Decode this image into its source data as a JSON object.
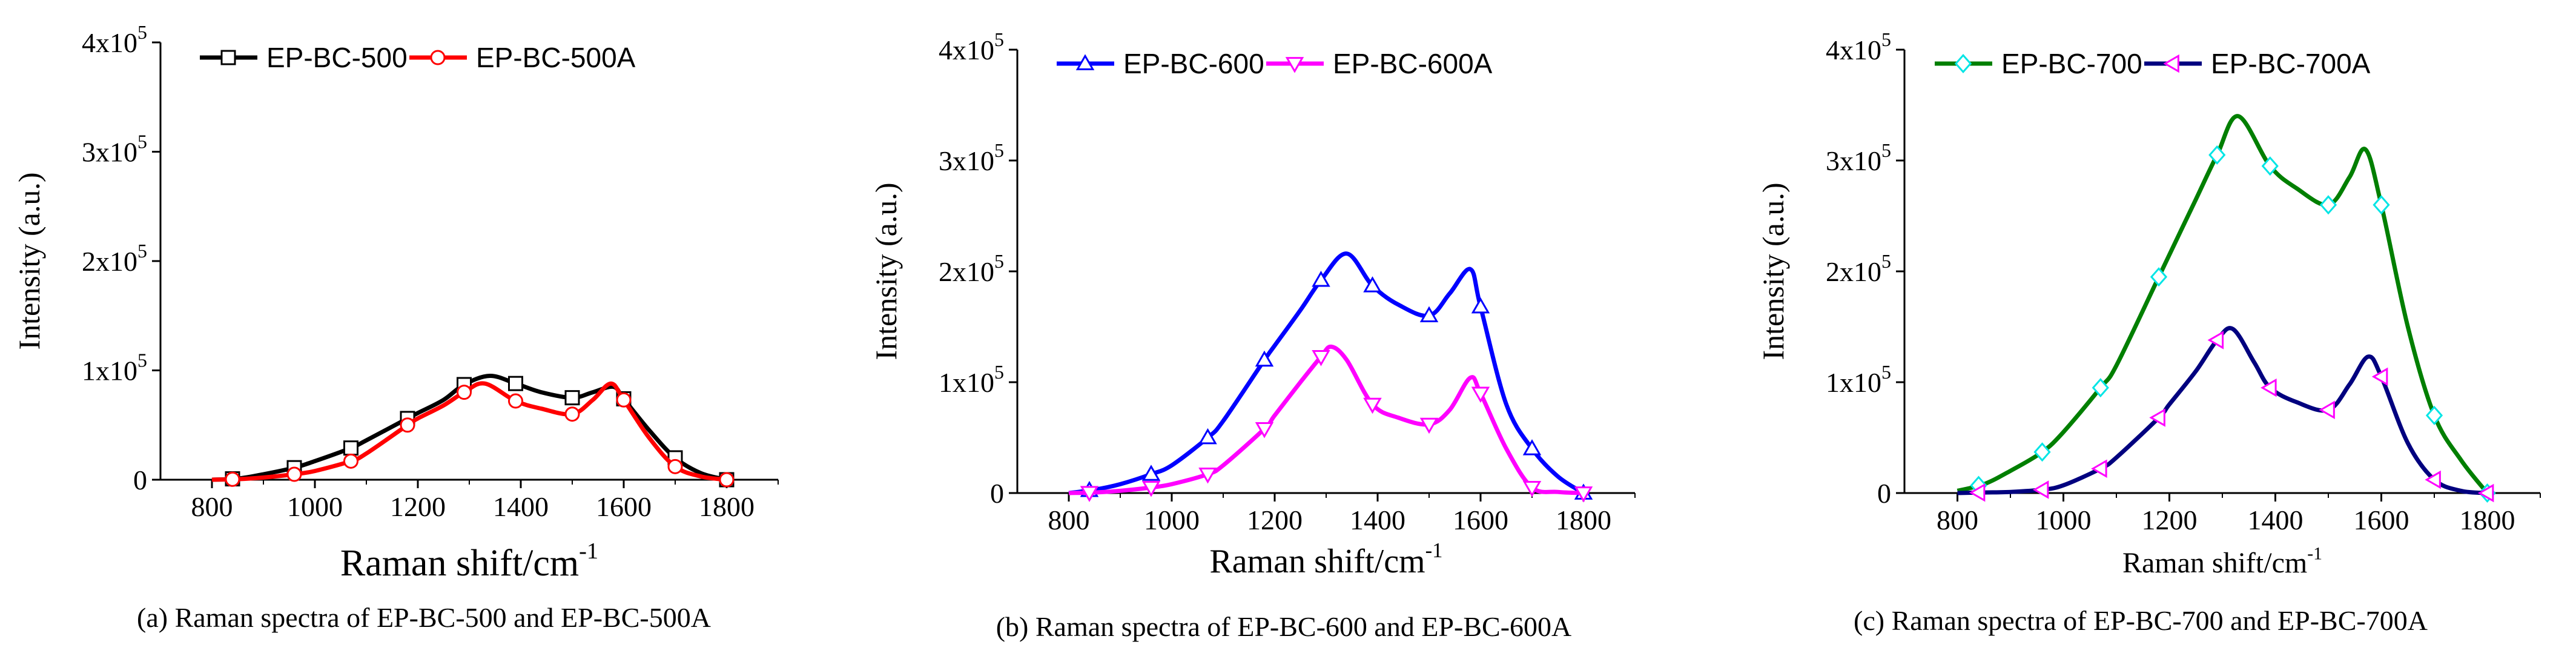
{
  "chart_data": [
    {
      "type": "line",
      "caption": "(a) Raman spectra of EP-BC-500 and EP-BC-500A",
      "xlabel": "Raman shift/cm",
      "xlabel_sup": "-1",
      "ylabel": "Intensity (a.u.)",
      "xlim": [
        700,
        1900
      ],
      "ylim": [
        0,
        400000
      ],
      "xticks": [
        "800",
        "1000",
        "1200",
        "1400",
        "1600",
        "1800"
      ],
      "yticks": [
        {
          "mant": "0",
          "exp": ""
        },
        {
          "mant": "1x10",
          "exp": "5"
        },
        {
          "mant": "2x10",
          "exp": "5"
        },
        {
          "mant": "3x10",
          "exp": "5"
        },
        {
          "mant": "4x10",
          "exp": "5"
        }
      ],
      "legend_position": "top-left",
      "series": [
        {
          "name": "EP-BC-500",
          "color": "#000000",
          "marker": "square",
          "marker_fill": "#ffffff",
          "x": [
            800,
            850,
            900,
            960,
            1000,
            1070,
            1100,
            1180,
            1200,
            1250,
            1290,
            1340,
            1390,
            1440,
            1500,
            1540,
            1580,
            1600,
            1650,
            1700,
            1750,
            1800
          ],
          "y": [
            0,
            1000,
            5000,
            11000,
            17000,
            29000,
            36000,
            56000,
            61000,
            73000,
            87000,
            95000,
            88000,
            80000,
            75000,
            80000,
            85000,
            74000,
            45000,
            20000,
            6000,
            0
          ],
          "markers_x": [
            840,
            960,
            1070,
            1180,
            1290,
            1390,
            1500,
            1600,
            1700,
            1800
          ]
        },
        {
          "name": "EP-BC-500A",
          "color": "#ff0000",
          "marker": "circle",
          "marker_fill": "#ffffff",
          "x": [
            800,
            850,
            900,
            960,
            1000,
            1070,
            1100,
            1180,
            1200,
            1250,
            1290,
            1330,
            1390,
            1440,
            1500,
            1540,
            1575,
            1600,
            1650,
            1700,
            1750,
            1800
          ],
          "y": [
            0,
            500,
            2000,
            5000,
            8000,
            17000,
            24000,
            50000,
            56000,
            68000,
            80000,
            88000,
            72000,
            65000,
            60000,
            73000,
            88000,
            73000,
            38000,
            12000,
            3000,
            0
          ],
          "markers_x": [
            840,
            960,
            1070,
            1180,
            1290,
            1390,
            1500,
            1600,
            1700,
            1800
          ]
        }
      ]
    },
    {
      "type": "line",
      "caption": "(b) Raman spectra of EP-BC-600 and EP-BC-600A",
      "xlabel": "Raman shift/cm",
      "xlabel_sup": "-1",
      "ylabel": "Intensity (a.u.)",
      "xlim": [
        700,
        1900
      ],
      "ylim": [
        0,
        400000
      ],
      "xticks": [
        "800",
        "1000",
        "1200",
        "1400",
        "1600",
        "1800"
      ],
      "yticks": [
        {
          "mant": "0",
          "exp": ""
        },
        {
          "mant": "1x10",
          "exp": "5"
        },
        {
          "mant": "2x10",
          "exp": "5"
        },
        {
          "mant": "3x10",
          "exp": "5"
        },
        {
          "mant": "4x10",
          "exp": "5"
        }
      ],
      "legend_position": "top-left",
      "series": [
        {
          "name": "EP-BC-600",
          "color": "#0000ff",
          "marker": "triangle-up",
          "marker_fill": "#ffffff",
          "x": [
            800,
            850,
            900,
            960,
            1000,
            1070,
            1100,
            1180,
            1200,
            1250,
            1290,
            1340,
            1390,
            1440,
            1500,
            1540,
            1580,
            1600,
            1650,
            1700,
            1750,
            1800
          ],
          "y": [
            0,
            3000,
            8000,
            17000,
            25000,
            50000,
            65000,
            120000,
            133000,
            165000,
            192000,
            216000,
            187000,
            170000,
            160000,
            180000,
            202000,
            168000,
            80000,
            40000,
            15000,
            0
          ],
          "markers_x": [
            840,
            960,
            1070,
            1180,
            1290,
            1390,
            1500,
            1600,
            1700,
            1800
          ]
        },
        {
          "name": "EP-BC-600A",
          "color": "#ff00ff",
          "marker": "triangle-down",
          "marker_fill": "#ffffff",
          "x": [
            800,
            850,
            900,
            960,
            1000,
            1070,
            1100,
            1180,
            1200,
            1250,
            1290,
            1310,
            1340,
            1390,
            1440,
            1500,
            1540,
            1580,
            1600,
            1650,
            1700,
            1750,
            1800
          ],
          "y": [
            0,
            500,
            2000,
            5000,
            8000,
            17000,
            25000,
            58000,
            70000,
            100000,
            123000,
            132000,
            120000,
            80000,
            68000,
            62000,
            75000,
            104000,
            90000,
            40000,
            5000,
            1000,
            0
          ],
          "markers_x": [
            840,
            960,
            1070,
            1180,
            1290,
            1390,
            1500,
            1600,
            1700,
            1800
          ]
        }
      ]
    },
    {
      "type": "line",
      "caption": "(c) Raman spectra of EP-BC-700 and EP-BC-700A",
      "xlabel": "Raman shift/cm",
      "xlabel_sup": "-1",
      "ylabel": "Intensity (a.u.)",
      "xlim": [
        700,
        1900
      ],
      "ylim": [
        0,
        400000
      ],
      "xticks": [
        "800",
        "1000",
        "1200",
        "1400",
        "1600",
        "1800"
      ],
      "yticks": [
        {
          "mant": "0",
          "exp": ""
        },
        {
          "mant": "1x10",
          "exp": "5"
        },
        {
          "mant": "2x10",
          "exp": "5"
        },
        {
          "mant": "3x10",
          "exp": "5"
        },
        {
          "mant": "4x10",
          "exp": "5"
        }
      ],
      "legend_position": "top-left",
      "series": [
        {
          "name": "EP-BC-700",
          "color": "#007f00",
          "marker": "diamond",
          "marker_fill": "#ffffff",
          "marker_stroke": "#00e5e5",
          "x": [
            800,
            850,
            900,
            960,
            1000,
            1070,
            1100,
            1180,
            1200,
            1250,
            1290,
            1330,
            1390,
            1440,
            1500,
            1540,
            1570,
            1600,
            1650,
            1700,
            1750,
            1800
          ],
          "y": [
            2000,
            8000,
            20000,
            37000,
            55000,
            95000,
            115000,
            195000,
            215000,
            265000,
            305000,
            340000,
            295000,
            275000,
            260000,
            285000,
            310000,
            260000,
            150000,
            70000,
            30000,
            0
          ],
          "markers_x": [
            840,
            960,
            1070,
            1180,
            1290,
            1390,
            1500,
            1600,
            1700,
            1800
          ]
        },
        {
          "name": "EP-BC-700A",
          "color": "#00007f",
          "marker": "triangle-left",
          "marker_fill": "#ffffff",
          "marker_stroke": "#ff00ff",
          "x": [
            800,
            850,
            900,
            960,
            1000,
            1070,
            1100,
            1180,
            1200,
            1250,
            1290,
            1320,
            1360,
            1390,
            1440,
            1500,
            1540,
            1575,
            1600,
            1650,
            1700,
            1750,
            1800
          ],
          "y": [
            0,
            500,
            1000,
            3000,
            7000,
            22000,
            32000,
            68000,
            80000,
            110000,
            138000,
            148000,
            118000,
            95000,
            82000,
            75000,
            98000,
            123000,
            105000,
            45000,
            12000,
            2000,
            0
          ],
          "markers_x": [
            840,
            960,
            1070,
            1180,
            1290,
            1390,
            1500,
            1600,
            1700,
            1800
          ]
        }
      ]
    }
  ]
}
